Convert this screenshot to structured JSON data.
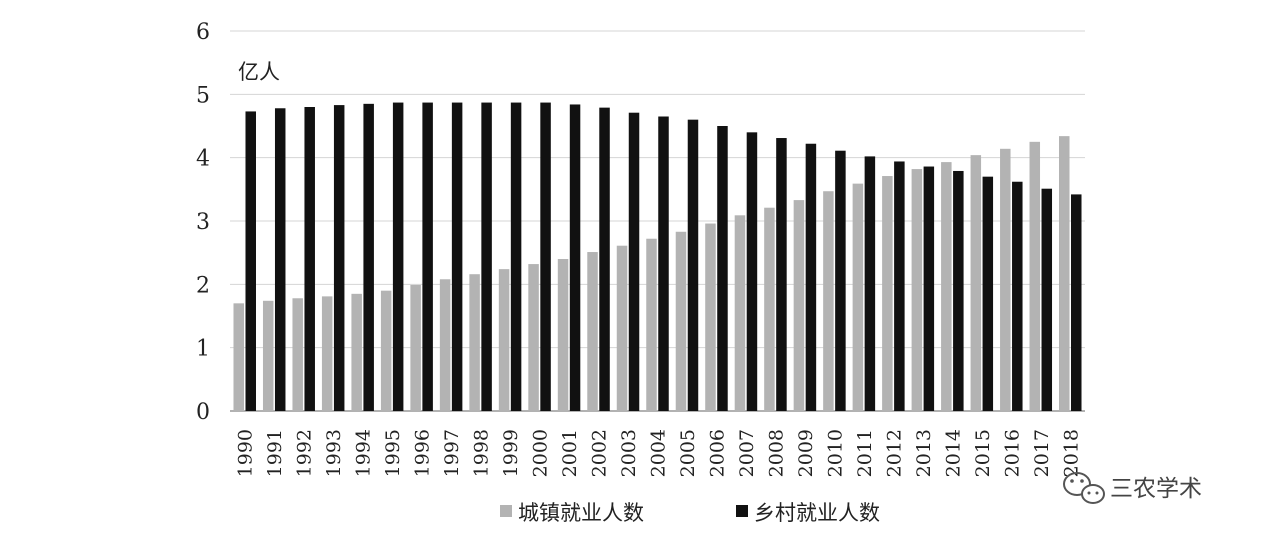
{
  "chart_data": {
    "type": "bar",
    "ylabel": "亿人",
    "ylim": [
      0,
      6
    ],
    "yticks": [
      "0",
      "1",
      "2",
      "3",
      "4",
      "5",
      "6"
    ],
    "grid": true,
    "legend_position": "bottom",
    "categories": [
      "1990",
      "1991",
      "1992",
      "1993",
      "1994",
      "1995",
      "1996",
      "1997",
      "1998",
      "1999",
      "2000",
      "2001",
      "2002",
      "2003",
      "2004",
      "2005",
      "2006",
      "2007",
      "2008",
      "2009",
      "2010",
      "2011",
      "2012",
      "2013",
      "2014",
      "2015",
      "2016",
      "2017",
      "2018"
    ],
    "series": [
      {
        "name": "城镇就业人数",
        "color": "#b3b3b3",
        "values": [
          1.7,
          1.74,
          1.78,
          1.81,
          1.85,
          1.9,
          1.99,
          2.08,
          2.16,
          2.24,
          2.32,
          2.4,
          2.51,
          2.61,
          2.72,
          2.83,
          2.96,
          3.09,
          3.21,
          3.33,
          3.47,
          3.59,
          3.71,
          3.82,
          3.93,
          4.04,
          4.14,
          4.25,
          4.34
        ]
      },
      {
        "name": "乡村就业人数",
        "color": "#111111",
        "values": [
          4.73,
          4.78,
          4.8,
          4.83,
          4.85,
          4.87,
          4.87,
          4.87,
          4.87,
          4.87,
          4.87,
          4.84,
          4.79,
          4.71,
          4.65,
          4.6,
          4.5,
          4.4,
          4.31,
          4.22,
          4.11,
          4.02,
          3.94,
          3.86,
          3.79,
          3.7,
          3.62,
          3.51,
          3.42
        ]
      }
    ]
  },
  "watermark": {
    "text": "三农学术",
    "icon": "wechat-icon"
  }
}
